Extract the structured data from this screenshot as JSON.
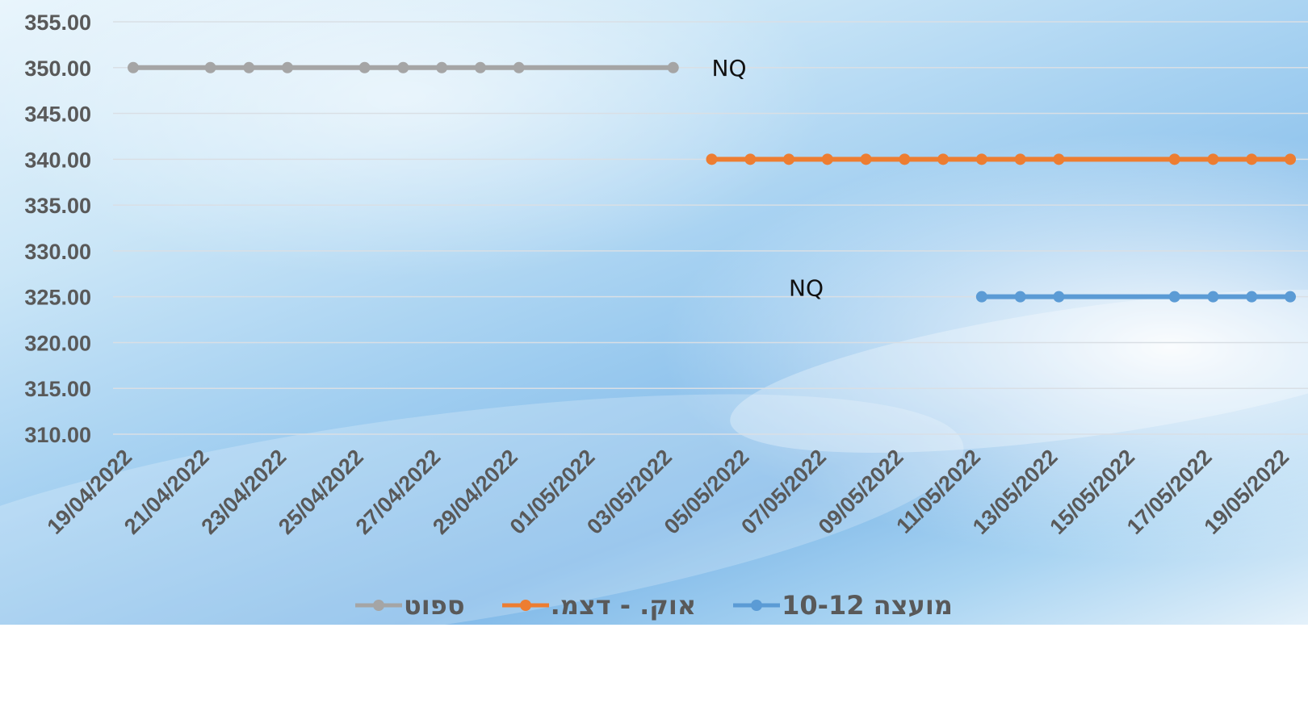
{
  "chart_data": {
    "type": "line",
    "title": "",
    "xlabel": "",
    "ylabel": "",
    "ylim": [
      310,
      355
    ],
    "yticks": [
      "310.00",
      "315.00",
      "320.00",
      "325.00",
      "330.00",
      "335.00",
      "340.00",
      "345.00",
      "350.00",
      "355.00"
    ],
    "x_tick_labels": [
      "19/04/2022",
      "21/04/2022",
      "23/04/2022",
      "25/04/2022",
      "27/04/2022",
      "29/04/2022",
      "01/05/2022",
      "03/05/2022",
      "05/05/2022",
      "07/05/2022",
      "09/05/2022",
      "11/05/2022",
      "13/05/2022",
      "15/05/2022",
      "17/05/2022",
      "19/05/2022"
    ],
    "grid": true,
    "legend_position": "bottom",
    "series": [
      {
        "name": "ספוט",
        "color": "#a5a5a5",
        "points": [
          [
            "19/04/2022",
            350
          ],
          [
            "21/04/2022",
            350
          ],
          [
            "22/04/2022",
            350
          ],
          [
            "23/04/2022",
            350
          ],
          [
            "25/04/2022",
            350
          ],
          [
            "26/04/2022",
            350
          ],
          [
            "27/04/2022",
            350
          ],
          [
            "28/04/2022",
            350
          ],
          [
            "29/04/2022",
            350
          ],
          [
            "03/05/2022",
            350
          ]
        ]
      },
      {
        "name": "אוק. - דצמ.",
        "color": "#ed7d31",
        "points": [
          [
            "04/05/2022",
            340
          ],
          [
            "05/05/2022",
            340
          ],
          [
            "06/05/2022",
            340
          ],
          [
            "07/05/2022",
            340
          ],
          [
            "08/05/2022",
            340
          ],
          [
            "09/05/2022",
            340
          ],
          [
            "10/05/2022",
            340
          ],
          [
            "11/05/2022",
            340
          ],
          [
            "12/05/2022",
            340
          ],
          [
            "13/05/2022",
            340
          ],
          [
            "16/05/2022",
            340
          ],
          [
            "17/05/2022",
            340
          ],
          [
            "18/05/2022",
            340
          ],
          [
            "19/05/2022",
            340
          ]
        ]
      },
      {
        "name": "מועצה 10-12",
        "color": "#5b9bd5",
        "points": [
          [
            "11/05/2022",
            325
          ],
          [
            "12/05/2022",
            325
          ],
          [
            "13/05/2022",
            325
          ],
          [
            "16/05/2022",
            325
          ],
          [
            "17/05/2022",
            325
          ],
          [
            "18/05/2022",
            325
          ],
          [
            "19/05/2022",
            325
          ]
        ]
      }
    ],
    "annotations": [
      {
        "text": "NQ",
        "x": "04/05/2022",
        "y": 350
      },
      {
        "text": "NQ",
        "x": "06/05/2022",
        "y": 326
      }
    ]
  },
  "legend": [
    {
      "label": "מועצה 10-12",
      "color": "#5b9bd5"
    },
    {
      "label": "אוק. - דצמ.",
      "color": "#ed7d31"
    },
    {
      "label": "ספוט",
      "color": "#a5a5a5"
    }
  ]
}
